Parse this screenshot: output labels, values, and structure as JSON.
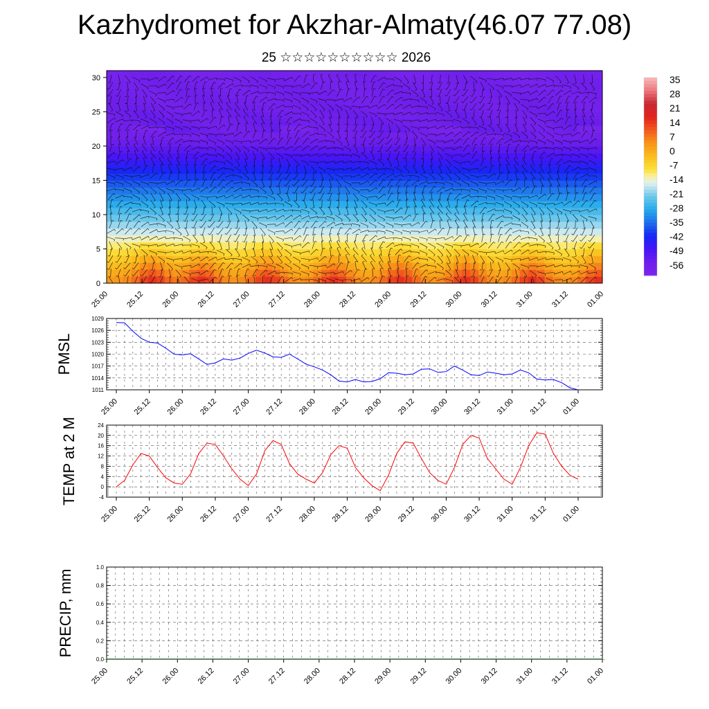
{
  "title": "Kazhydromet for Akzhar-Almaty(46.07 77.08)",
  "subtitle": "25 ☆☆☆☆☆☆☆☆☆☆ 2026",
  "time_labels": [
    "25.00",
    "25.12",
    "26.00",
    "26.12",
    "27.00",
    "27.12",
    "28.00",
    "28.12",
    "29.00",
    "29.12",
    "30.00",
    "30.12",
    "31.00",
    "31.12",
    "01.00"
  ],
  "chart_data": [
    {
      "type": "heatmap",
      "name": "temperature-wind cross-section",
      "x_labels": [
        "25.00",
        "25.12",
        "26.00",
        "26.12",
        "27.00",
        "27.12",
        "28.00",
        "28.12",
        "29.00",
        "29.12",
        "30.00",
        "30.12",
        "31.00",
        "31.12",
        "01.00"
      ],
      "y_ticks": [
        0,
        5,
        10,
        15,
        20,
        25,
        30
      ],
      "ylim": [
        0,
        31
      ],
      "colorbar_ticks": [
        35,
        28,
        21,
        14,
        7,
        0,
        -7,
        -14,
        -21,
        -28,
        -35,
        -42,
        -49,
        -56
      ],
      "colorbar_range": [
        -63,
        42
      ],
      "surface_warm_columns": [
        5,
        11,
        19,
        27,
        35,
        43,
        51,
        59
      ],
      "tropopause_level": 22
    },
    {
      "type": "line",
      "name": "PMSL",
      "ylabel": "PMSL",
      "ylim": [
        1011,
        1029
      ],
      "y_ticks": [
        1011,
        1014,
        1017,
        1020,
        1023,
        1026,
        1029
      ],
      "x_labels": [
        "25.00",
        "25.12",
        "26.00",
        "26.12",
        "27.00",
        "27.12",
        "28.00",
        "28.12",
        "29.00",
        "29.12",
        "30.00",
        "30.12",
        "31.00",
        "31.12",
        "01.00"
      ],
      "step_hours": 3,
      "color": "#0000ff",
      "values": [
        1028.0,
        1027.9,
        1025.8,
        1024.0,
        1023.0,
        1022.8,
        1021.5,
        1020.0,
        1019.8,
        1020.1,
        1018.8,
        1017.4,
        1017.8,
        1018.8,
        1018.5,
        1019.0,
        1020.2,
        1021.0,
        1020.3,
        1019.3,
        1019.2,
        1020.0,
        1018.8,
        1017.5,
        1016.8,
        1016.0,
        1014.8,
        1013.2,
        1013.0,
        1013.6,
        1013.0,
        1013.1,
        1013.8,
        1015.3,
        1015.2,
        1014.8,
        1015.0,
        1016.2,
        1016.3,
        1015.4,
        1015.6,
        1017.0,
        1016.0,
        1014.8,
        1014.6,
        1015.5,
        1015.2,
        1014.8,
        1015.0,
        1016.0,
        1015.3,
        1013.7,
        1013.5,
        1013.6,
        1012.8,
        1011.5,
        1011.0
      ]
    },
    {
      "type": "line",
      "name": "TEMP at 2 M",
      "ylabel": "TEMP at 2 M",
      "ylim": [
        -4,
        24
      ],
      "y_ticks": [
        -4,
        0,
        4,
        8,
        12,
        16,
        20,
        24
      ],
      "x_labels": [
        "25.00",
        "25.12",
        "26.00",
        "26.12",
        "27.00",
        "27.12",
        "28.00",
        "28.12",
        "29.00",
        "29.12",
        "30.00",
        "30.12",
        "31.00",
        "31.12",
        "01.00"
      ],
      "step_hours": 3,
      "color": "#ff0000",
      "values": [
        0.0,
        2.5,
        8.5,
        13.0,
        12.0,
        7.5,
        3.5,
        1.5,
        1.0,
        5.0,
        13.0,
        17.0,
        16.5,
        12.0,
        7.0,
        3.0,
        0.5,
        5.0,
        14.0,
        18.0,
        16.5,
        9.0,
        5.0,
        3.0,
        1.5,
        5.5,
        12.5,
        16.0,
        15.0,
        7.5,
        3.5,
        0.5,
        -1.5,
        4.5,
        13.0,
        17.5,
        17.0,
        11.0,
        5.5,
        2.5,
        1.0,
        7.5,
        16.5,
        20.0,
        19.0,
        11.0,
        7.0,
        3.0,
        1.0,
        7.5,
        16.0,
        21.0,
        20.5,
        13.0,
        8.0,
        4.5,
        3.0
      ]
    },
    {
      "type": "bar",
      "name": "PRECIP, mm",
      "ylabel": "PRECIP, mm",
      "ylim": [
        0.0,
        1.0
      ],
      "y_ticks": [
        "0.0",
        "0.2",
        "0.4",
        "0.6",
        "0.8",
        "1.0"
      ],
      "x_labels": [
        "25.00",
        "25.12",
        "26.00",
        "26.12",
        "27.00",
        "27.12",
        "28.00",
        "28.12",
        "29.00",
        "29.12",
        "30.00",
        "30.12",
        "31.00",
        "31.12",
        "01.00"
      ],
      "values": [
        0,
        0,
        0,
        0,
        0,
        0,
        0,
        0,
        0,
        0,
        0,
        0,
        0,
        0,
        0,
        0,
        0,
        0,
        0,
        0,
        0,
        0,
        0,
        0,
        0,
        0,
        0,
        0,
        0,
        0,
        0,
        0,
        0,
        0,
        0,
        0,
        0,
        0,
        0,
        0,
        0,
        0,
        0,
        0,
        0,
        0,
        0,
        0,
        0,
        0,
        0,
        0,
        0,
        0,
        0,
        0,
        0
      ]
    }
  ]
}
